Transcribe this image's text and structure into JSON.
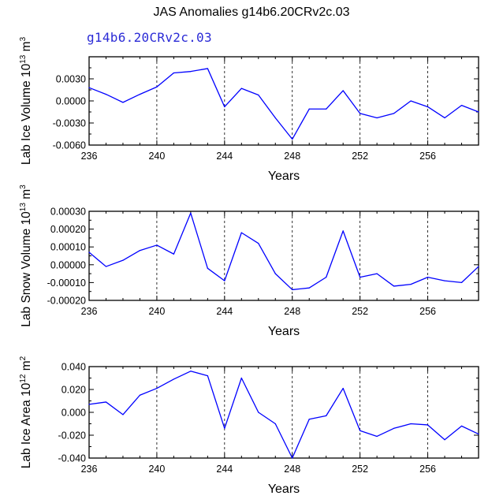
{
  "title": "JAS Anomalies g14b6.20CRv2c.03",
  "subtitle": "g14b6.20CRv2c.03",
  "colors": {
    "line": "#0000ff",
    "subtitle": "#2b2bd6",
    "axis": "#000000",
    "grid": "#000000"
  },
  "chart_data": [
    {
      "type": "line",
      "ylabel_main": "Lab Ice Volume 10",
      "ylabel_exp": "13",
      "ylabel_unit": " m",
      "ylabel_unit_exp": "3",
      "xlabel": "Years",
      "xlim": [
        236,
        259
      ],
      "ylim": [
        -0.006,
        0.006
      ],
      "yticks": [
        -0.006,
        -0.003,
        0.0,
        0.003
      ],
      "ytick_labels": [
        "-0.0060",
        "-0.0030",
        "0.0000",
        "0.0030"
      ],
      "xticks": [
        236,
        240,
        244,
        248,
        252,
        256
      ],
      "xtick_labels": [
        "236",
        "240",
        "244",
        "248",
        "252",
        "256"
      ],
      "gridlines_x": [
        240,
        244,
        248,
        252,
        256
      ],
      "x": [
        236,
        237,
        238,
        239,
        240,
        241,
        242,
        243,
        244,
        245,
        246,
        247,
        248,
        249,
        250,
        251,
        252,
        253,
        254,
        255,
        256,
        257,
        258,
        259
      ],
      "values": [
        0.0018,
        0.0009,
        -0.0002,
        0.0009,
        0.0019,
        0.0038,
        0.004,
        0.0044,
        -0.0008,
        0.0017,
        0.0008,
        -0.0023,
        -0.0052,
        -0.0011,
        -0.0011,
        0.0014,
        -0.0017,
        -0.0023,
        -0.0017,
        0.0,
        -0.0008,
        -0.0023,
        -0.0006,
        -0.0015
      ]
    },
    {
      "type": "line",
      "ylabel_main": "Lab Snow Volume 10",
      "ylabel_exp": "13",
      "ylabel_unit": " m",
      "ylabel_unit_exp": "3",
      "xlabel": "Years",
      "xlim": [
        236,
        259
      ],
      "ylim": [
        -0.0002,
        0.0003
      ],
      "yticks": [
        -0.0002,
        -0.0001,
        0.0,
        0.0001,
        0.0002,
        0.0003
      ],
      "ytick_labels": [
        "-0.00020",
        "-0.00010",
        "0.00000",
        "0.00010",
        "0.00020",
        "0.00030"
      ],
      "xticks": [
        236,
        240,
        244,
        248,
        252,
        256
      ],
      "xtick_labels": [
        "236",
        "240",
        "244",
        "248",
        "252",
        "256"
      ],
      "gridlines_x": [
        240,
        244,
        248,
        252,
        256
      ],
      "x": [
        236,
        237,
        238,
        239,
        240,
        241,
        242,
        243,
        244,
        245,
        246,
        247,
        248,
        249,
        250,
        251,
        252,
        253,
        254,
        255,
        256,
        257,
        258,
        259
      ],
      "values": [
        7e-05,
        -1e-05,
        2.5e-05,
        8e-05,
        0.00011,
        6e-05,
        0.00029,
        -2e-05,
        -9e-05,
        0.00018,
        0.00012,
        -5e-05,
        -0.00014,
        -0.00013,
        -7e-05,
        0.00019,
        -7e-05,
        -5e-05,
        -0.00012,
        -0.00011,
        -7e-05,
        -9e-05,
        -0.0001,
        -1e-05
      ]
    },
    {
      "type": "line",
      "ylabel_main": "Lab Ice Area 10",
      "ylabel_exp": "12",
      "ylabel_unit": " m",
      "ylabel_unit_exp": "2",
      "xlabel": "Years",
      "xlim": [
        236,
        259
      ],
      "ylim": [
        -0.04,
        0.04
      ],
      "yticks": [
        -0.04,
        -0.02,
        0.0,
        0.02,
        0.04
      ],
      "ytick_labels": [
        "-0.040",
        "-0.020",
        "0.000",
        "0.020",
        "0.040"
      ],
      "xticks": [
        236,
        240,
        244,
        248,
        252,
        256
      ],
      "xtick_labels": [
        "236",
        "240",
        "244",
        "248",
        "252",
        "256"
      ],
      "gridlines_x": [
        240,
        244,
        248,
        252,
        256
      ],
      "x": [
        236,
        237,
        238,
        239,
        240,
        241,
        242,
        243,
        244,
        245,
        246,
        247,
        248,
        249,
        250,
        251,
        252,
        253,
        254,
        255,
        256,
        257,
        258,
        259
      ],
      "values": [
        0.007,
        0.009,
        -0.002,
        0.015,
        0.021,
        0.029,
        0.036,
        0.032,
        -0.014,
        0.03,
        0.0,
        -0.01,
        -0.04,
        -0.006,
        -0.003,
        0.021,
        -0.016,
        -0.021,
        -0.014,
        -0.01,
        -0.011,
        -0.024,
        -0.012,
        -0.019
      ]
    }
  ]
}
